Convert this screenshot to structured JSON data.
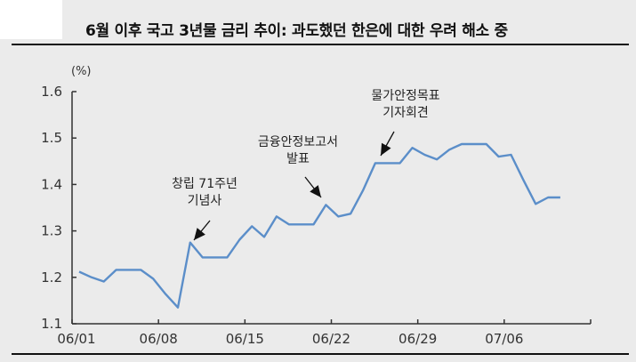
{
  "title": "6월 이후 국고 3년물 금리 추이: 과도했던 한은에 대한 우려 해소 중",
  "colors": {
    "line": "#5b8ec9",
    "axis": "#333333",
    "background": "#ebebeb"
  },
  "chart_data": {
    "type": "line",
    "title": "6월 이후 국고 3년물 금리 추이: 과도했던 한은에 대한 우려 해소 중",
    "xlabel": "",
    "ylabel": "(%)",
    "ylim": [
      1.1,
      1.6
    ],
    "yticks": [
      "1.6",
      "1.5",
      "1.4",
      "1.3",
      "1.2",
      "1.1"
    ],
    "xticks": [
      "06/01",
      "06/08",
      "06/15",
      "06/22",
      "06/29",
      "07/06"
    ],
    "grid": false,
    "legend": null,
    "series": [
      {
        "name": "국고 3년물 금리",
        "values": [
          1.212,
          1.2,
          1.191,
          1.216,
          1.216,
          1.216,
          1.197,
          1.164,
          1.135,
          1.275,
          1.243,
          1.243,
          1.243,
          1.281,
          1.31,
          1.287,
          1.331,
          1.314,
          1.314,
          1.314,
          1.356,
          1.331,
          1.337,
          1.387,
          1.446,
          1.446,
          1.446,
          1.479,
          1.464,
          1.454,
          1.475,
          1.487,
          1.487,
          1.487,
          1.46,
          1.464,
          1.41,
          1.358,
          1.372,
          1.372
        ]
      }
    ],
    "annotations": [
      {
        "text": [
          "창립 71주년",
          "기념사"
        ],
        "point_index": 9
      },
      {
        "text": [
          "금융안정보고서",
          "발표"
        ],
        "point_index": 20
      },
      {
        "text": [
          "물가안정목표",
          "기자회견"
        ],
        "point_index": 24
      }
    ]
  }
}
